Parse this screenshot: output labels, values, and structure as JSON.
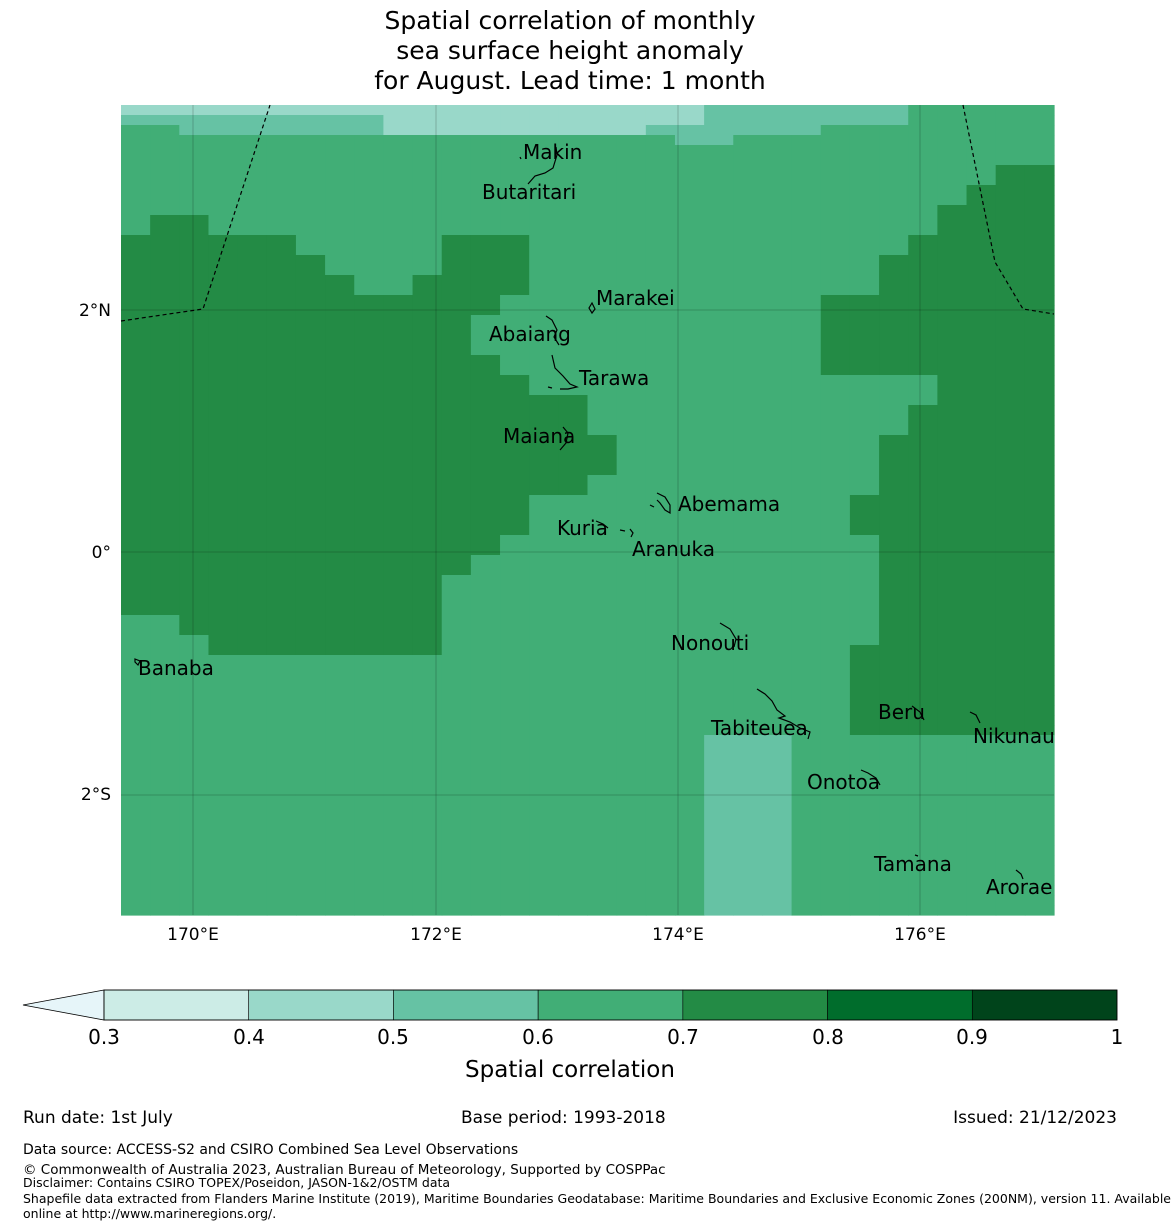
{
  "title": {
    "line1": "Spatial correlation of monthly",
    "line2": "sea surface height anomaly",
    "line3": "for August. Lead time: 1 month"
  },
  "map": {
    "lon_ticks": [
      "170°E",
      "172°E",
      "174°E",
      "176°E"
    ],
    "lat_ticks": [
      "2°N",
      "0°",
      "2°S"
    ],
    "islands": [
      "Makin",
      "Butaritari",
      "Marakei",
      "Abaiang",
      "Tarawa",
      "Maiana",
      "Abemama",
      "Kuria",
      "Aranuka",
      "Nonouti",
      "Banaba",
      "Tabiteuea",
      "Beru",
      "Nikunau",
      "Onotoa",
      "Tamana",
      "Arorae"
    ],
    "class_colors": [
      "#e6f5f9",
      "#ccece6",
      "#99d8c9",
      "#66c2a4",
      "#41ae76",
      "#238b45",
      "#006d2c",
      "#00441b"
    ],
    "grid": [
      "22222222222222222222333333344444",
      "33333333322222222222333333344444",
      "44333333322222222233333344444444",
      "44444444444444444443344444444444",
      "44444444444444444444444444444444",
      "44444444444444444444444444444444",
      "44444444444444444444444444444455",
      "44444444444444444444444444444455",
      "44444444444444444444444444444555",
      "44444444444444444444444444444555",
      "44444444444444444444444444445555",
      "45544444444444444444444444445555",
      "45544444444444444444444444445555",
      "55555544444555444444444444455555",
      "55555544444555444444444444455555",
      "55555554444555444444444444555555",
      "55555554444555444444444444555555",
      "55555555445555444444444444555555",
      "55555555445555444444444444555555",
      "55555555555554444444444455555555",
      "55555555555554444444444455555555",
      "55555555555544444444444455555555",
      "55555555555544444444444455555555",
      "55555555555544444444444455555555",
      "55555555555544444444444455555555",
      "55555555555554444444444455555555",
      "55555555555554444444444455555555",
      "55555555555555444444444444445555",
      "55555555555555444444444444445555",
      "55555555555555554444444444445555",
      "55555555555555554444444444455555",
      "55555555555555554444444444455555",
      "55555555555555554444444444455555",
      "55555555555555555444444444555555",
      "55555555555555555444444444555555",
      "55555555555555555444444444555555",
      "55555555555555555444444444555555",
      "55555555555555554444444444555555",
      "55555555555555554444444444555555",
      "55555555555555444444444445555555",
      "55555555555555444444444445555555",
      "55555555555555444444444445555555",
      "55555555555555444444444445555555",
      "55555555555554444444444444555555",
      "55555555555554444444444444555555",
      "55555555555544444444444444555555",
      "55555555555544444444444444555555",
      "55555555555444444444444444555555",
      "55555555555444444444444444555555",
      "55555555555444444444444444555555",
      "55555555555444444444444444555555",
      "44555555555444444444444444555555",
      "44555555555444444444444444555555",
      "44455555555444444444444444555555",
      "44455555555444444444444445555555",
      "44444444444444444444444445555555",
      "44444444444444444444444445555555",
      "44444444444444444444444445555555",
      "44444444444444444444444445555555",
      "44444444444444444444444445555555",
      "44444444444444444444444445555555",
      "44444444444444444444444445555555",
      "44444444444444444444444445555555",
      "44444444444444444444333444444444",
      "44444444444444444444333444444444",
      "44444444444444444444333444444444",
      "44444444444444444444333444444444",
      "44444444444444444444333444444444",
      "44444444444444444444333444444444",
      "44444444444444444444333444444444",
      "44444444444444444444333444444444",
      "44444444444444444444333444444444",
      "44444444444444444444333444444444",
      "44444444444444444444333444444444",
      "44444444444444444444333444444444",
      "44444444444444444444333444444444",
      "44444444444444444444333444444444",
      "44444444444444444444333444444444",
      "44444444444444444444333444444444",
      "44444444444444444444333444444444",
      "44444444444444444444333444444444"
    ]
  },
  "colorbar": {
    "label": "Spatial correlation",
    "ticks": [
      "0.3",
      "0.4",
      "0.5",
      "0.6",
      "0.7",
      "0.8",
      "0.9",
      "1"
    ],
    "colors": [
      "#ccece6",
      "#99d8c9",
      "#66c2a4",
      "#41ae76",
      "#238b45",
      "#006d2c",
      "#00441b"
    ],
    "under_color": "#e6f5f9"
  },
  "footer": {
    "run_date": "Run date: 1st July",
    "base_period": "Base period: 1993-2018",
    "issued": "Issued: 21/12/2023",
    "data_source": "Data source: ACCESS-S2 and CSIRO Combined Sea Level Observations",
    "copyright": "© Commonwealth of Australia 2023, Australian Bureau of Meteorology, Supported by COSPPac",
    "disclaimer": "Disclaimer: Contains CSIRO TOPEX/Poseidon, JASON-1&2/OSTM data",
    "shapefile_1": "Shapefile data extracted from Flanders Marine Institute (2019), Maritime Boundaries Geodatabase: Maritime Boundaries and Exclusive Economic Zones (200NM), version 11. Available",
    "shapefile_2": "online at http://www.marineregions.org/."
  }
}
